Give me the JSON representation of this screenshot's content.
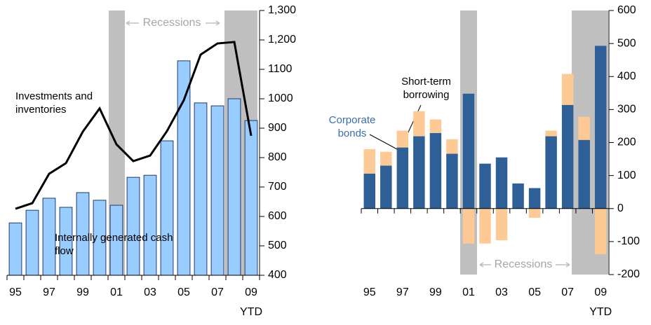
{
  "chart_data": [
    {
      "type": "combo",
      "categories": [
        "95",
        null,
        "97",
        null,
        "99",
        null,
        "01",
        null,
        "03",
        null,
        "05",
        null,
        "07",
        null,
        "09"
      ],
      "x_sublabel": "YTD",
      "series": [
        {
          "name": "Internally generated cash flow",
          "type": "bar",
          "color": "#99ccff",
          "values": [
            578,
            621,
            662,
            631,
            681,
            655,
            638,
            733,
            740,
            857,
            1129,
            986,
            976,
            1000,
            926
          ]
        },
        {
          "name": "Investments and inventories",
          "type": "line",
          "color": "#000000",
          "values": [
            626,
            645,
            745,
            781,
            888,
            967,
            845,
            788,
            807,
            890,
            995,
            1150,
            1188,
            1193,
            874
          ]
        }
      ],
      "ylim": [
        400,
        1300
      ],
      "yticks": [
        400,
        500,
        600,
        700,
        800,
        900,
        1000,
        1100,
        {
          "value": 1200,
          "label": "1,200"
        },
        {
          "value": 1300,
          "label": "1,300"
        }
      ],
      "annotation": "Recessions"
    },
    {
      "type": "stacked_bar",
      "categories": [
        "95",
        null,
        "97",
        null,
        "99",
        null,
        "01",
        null,
        "03",
        null,
        "05",
        null,
        "07",
        null,
        "09"
      ],
      "x_sublabel": "YTD",
      "series": [
        {
          "name": "Corporate bonds",
          "color": "#2e5f96",
          "values": [
            106,
            130,
            185,
            219,
            229,
            166,
            348,
            136,
            155,
            76,
            62,
            219,
            314,
            208,
            493
          ]
        },
        {
          "name": "Short-term borrowing",
          "color": "#fdc995",
          "values": [
            74,
            42,
            51,
            76,
            41,
            44,
            -106,
            -106,
            -96,
            0,
            -28,
            17,
            94,
            70,
            -138
          ]
        }
      ],
      "ylim": [
        -200,
        600
      ],
      "yticks": [
        -200,
        -100,
        0,
        100,
        200,
        300,
        400,
        500,
        600
      ],
      "annotation": "Recessions"
    }
  ]
}
